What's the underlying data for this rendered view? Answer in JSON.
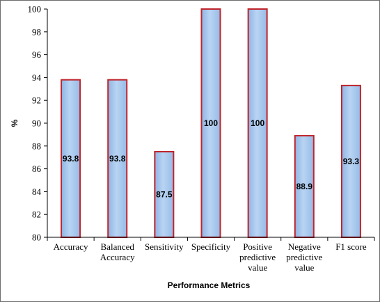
{
  "chart_data": {
    "type": "bar",
    "title": "",
    "xlabel": "Performance Metrics",
    "ylabel": "%",
    "categories": [
      [
        "Accuracy"
      ],
      [
        "Balanced",
        "Accuracy"
      ],
      [
        "Sensitivity"
      ],
      [
        "Specificity"
      ],
      [
        "Positive",
        "predictive",
        "value"
      ],
      [
        "Negative",
        "predictive",
        "value"
      ],
      [
        "F1 score"
      ]
    ],
    "values": [
      93.8,
      93.8,
      87.5,
      100,
      100,
      88.9,
      93.3
    ],
    "data_labels": [
      "93.8",
      "93.8",
      "87.5",
      "100",
      "100",
      "88.9",
      "93.3"
    ],
    "ylim": [
      80,
      100
    ],
    "yticks": [
      80,
      82,
      84,
      86,
      88,
      90,
      92,
      94,
      96,
      98,
      100
    ],
    "grid": false,
    "legend": "none",
    "colors": {
      "bar_fill": "#a9c9ee",
      "bar_border": "#c0242b",
      "axis": "#000000"
    }
  }
}
